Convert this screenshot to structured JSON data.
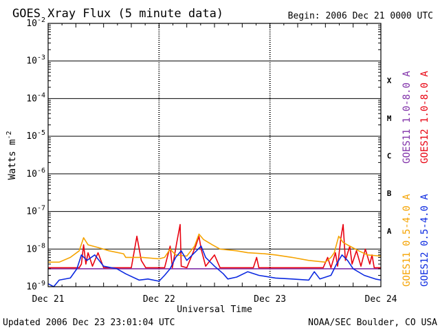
{
  "header": {
    "title": "GOES Xray Flux (5 minute data)",
    "begin": "Begin:  2006 Dec 21 0000 UTC"
  },
  "footer": {
    "updated": "Updated 2006 Dec 23 23:01:04 UTC",
    "source": "NOAA/SEC Boulder, CO USA"
  },
  "chart_data": {
    "type": "line",
    "title": "GOES Xray Flux (5 minute data)",
    "xlabel": "Universal Time",
    "ylabel": "Watts m",
    "ylabel_exponent": "-2",
    "y_scale": "log",
    "ylim": [
      1e-09,
      0.01
    ],
    "xlim_days": [
      0,
      3
    ],
    "x_ticks": [
      "Dec 21",
      "Dec 22",
      "Dec 23",
      "Dec 24"
    ],
    "y_ticks": [
      {
        "base": "10",
        "exp": "-9"
      },
      {
        "base": "10",
        "exp": "-8"
      },
      {
        "base": "10",
        "exp": "-7"
      },
      {
        "base": "10",
        "exp": "-6"
      },
      {
        "base": "10",
        "exp": "-5"
      },
      {
        "base": "10",
        "exp": "-4"
      },
      {
        "base": "10",
        "exp": "-3"
      },
      {
        "base": "10",
        "exp": "-2"
      }
    ],
    "flare_classes": [
      "A",
      "B",
      "C",
      "M",
      "X"
    ],
    "grid": true,
    "legend_position": "right",
    "series": [
      {
        "name": "GOES11 1.0-8.0 A",
        "color": "#7f2fa8",
        "points": [
          [
            0,
            3e-09
          ],
          [
            3,
            3e-09
          ]
        ]
      },
      {
        "name": "GOES12 1.0-8.0 A",
        "color": "#e8000f",
        "points": [
          [
            0,
            3.2e-09
          ],
          [
            0.28,
            3.2e-09
          ],
          [
            0.3,
            4e-09
          ],
          [
            0.32,
            1.3e-08
          ],
          [
            0.34,
            4e-09
          ],
          [
            0.36,
            8e-09
          ],
          [
            0.4,
            3.5e-09
          ],
          [
            0.45,
            8e-09
          ],
          [
            0.5,
            3.2e-09
          ],
          [
            0.75,
            3.2e-09
          ],
          [
            0.8,
            2.2e-08
          ],
          [
            0.84,
            5e-09
          ],
          [
            0.88,
            3.2e-09
          ],
          [
            1.05,
            3.2e-09
          ],
          [
            1.1,
            1.2e-08
          ],
          [
            1.12,
            3.2e-09
          ],
          [
            1.16,
            1.5e-08
          ],
          [
            1.19,
            4.5e-08
          ],
          [
            1.2,
            3.5e-09
          ],
          [
            1.25,
            3.2e-09
          ],
          [
            1.33,
            1.2e-08
          ],
          [
            1.36,
            2.2e-08
          ],
          [
            1.38,
            1e-08
          ],
          [
            1.42,
            3.5e-09
          ],
          [
            1.5,
            7e-09
          ],
          [
            1.55,
            3.2e-09
          ],
          [
            1.85,
            3.2e-09
          ],
          [
            1.88,
            6e-09
          ],
          [
            1.9,
            3.2e-09
          ],
          [
            2.2,
            3.2e-09
          ],
          [
            2.48,
            3.2e-09
          ],
          [
            2.52,
            6e-09
          ],
          [
            2.55,
            3.2e-09
          ],
          [
            2.59,
            8e-09
          ],
          [
            2.61,
            3.5e-09
          ],
          [
            2.64,
            2e-08
          ],
          [
            2.66,
            4.5e-08
          ],
          [
            2.68,
            5e-09
          ],
          [
            2.72,
            1.2e-08
          ],
          [
            2.74,
            4e-09
          ],
          [
            2.78,
            9e-09
          ],
          [
            2.82,
            3.5e-09
          ],
          [
            2.86,
            1e-08
          ],
          [
            2.9,
            4e-09
          ],
          [
            2.92,
            7e-09
          ],
          [
            2.94,
            3.2e-09
          ],
          [
            3,
            3.2e-09
          ]
        ]
      },
      {
        "name": "GOES11 0.5-4.0 A",
        "color": "#f5a300",
        "points": [
          [
            0,
            4.5e-09
          ],
          [
            0.1,
            4.5e-09
          ],
          [
            0.2,
            6e-09
          ],
          [
            0.28,
            9e-09
          ],
          [
            0.32,
            2e-08
          ],
          [
            0.36,
            1.3e-08
          ],
          [
            0.45,
            1.1e-08
          ],
          [
            0.55,
            9e-09
          ],
          [
            0.68,
            7.5e-09
          ],
          [
            0.7,
            6e-09
          ],
          [
            0.85,
            6e-09
          ],
          [
            1.0,
            5.5e-09
          ],
          [
            1.05,
            6e-09
          ],
          [
            1.1,
            1e-08
          ],
          [
            1.15,
            7e-09
          ],
          [
            1.25,
            6.5e-09
          ],
          [
            1.32,
            1.2e-08
          ],
          [
            1.36,
            2.5e-08
          ],
          [
            1.4,
            1.8e-08
          ],
          [
            1.48,
            1.3e-08
          ],
          [
            1.55,
            1e-08
          ],
          [
            1.7,
            9e-09
          ],
          [
            1.8,
            8e-09
          ],
          [
            1.95,
            7.5e-09
          ],
          [
            2.05,
            7e-09
          ],
          [
            2.2,
            6e-09
          ],
          [
            2.35,
            5e-09
          ],
          [
            2.5,
            4.5e-09
          ],
          [
            2.55,
            6e-09
          ],
          [
            2.58,
            8e-09
          ],
          [
            2.62,
            2.2e-08
          ],
          [
            2.66,
            1.5e-08
          ],
          [
            2.72,
            1.2e-08
          ],
          [
            2.8,
            9e-09
          ],
          [
            2.88,
            7e-09
          ],
          [
            3,
            6.5e-09
          ]
        ]
      },
      {
        "name": "GOES12 0.5-4.0 A",
        "color": "#0a28e0",
        "points": [
          [
            0,
            1.2e-09
          ],
          [
            0.05,
            1e-09
          ],
          [
            0.1,
            1.5e-09
          ],
          [
            0.2,
            1.7e-09
          ],
          [
            0.26,
            3e-09
          ],
          [
            0.3,
            7e-09
          ],
          [
            0.35,
            5e-09
          ],
          [
            0.42,
            7e-09
          ],
          [
            0.5,
            3.5e-09
          ],
          [
            0.62,
            3e-09
          ],
          [
            0.7,
            2.2e-09
          ],
          [
            0.82,
            1.5e-09
          ],
          [
            0.9,
            1.6e-09
          ],
          [
            1.0,
            1.4e-09
          ],
          [
            1.05,
            2e-09
          ],
          [
            1.1,
            3e-09
          ],
          [
            1.15,
            6e-09
          ],
          [
            1.2,
            9e-09
          ],
          [
            1.25,
            5e-09
          ],
          [
            1.32,
            8e-09
          ],
          [
            1.38,
            1.2e-08
          ],
          [
            1.42,
            6e-09
          ],
          [
            1.5,
            3.5e-09
          ],
          [
            1.58,
            2.2e-09
          ],
          [
            1.62,
            1.6e-09
          ],
          [
            1.7,
            1.8e-09
          ],
          [
            1.8,
            2.5e-09
          ],
          [
            1.9,
            2e-09
          ],
          [
            2.05,
            1.7e-09
          ],
          [
            2.2,
            1.6e-09
          ],
          [
            2.35,
            1.5e-09
          ],
          [
            2.4,
            2.5e-09
          ],
          [
            2.45,
            1.6e-09
          ],
          [
            2.55,
            2e-09
          ],
          [
            2.6,
            4e-09
          ],
          [
            2.65,
            7e-09
          ],
          [
            2.7,
            5e-09
          ],
          [
            2.75,
            3e-09
          ],
          [
            2.85,
            2e-09
          ],
          [
            2.95,
            1.6e-09
          ],
          [
            3,
            1.5e-09
          ]
        ]
      }
    ]
  }
}
